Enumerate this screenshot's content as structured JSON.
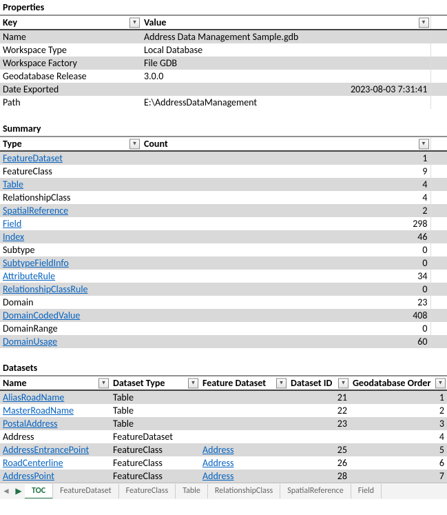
{
  "sections": {
    "properties": "Properties",
    "summary": "Summary",
    "datasets": "Datasets"
  },
  "propHeaders": {
    "key": "Key",
    "value": "Value"
  },
  "properties": [
    {
      "key": "Name",
      "value": "Address Data Management Sample.gdb",
      "alt": true
    },
    {
      "key": "Workspace Type",
      "value": "Local Database",
      "alt": false
    },
    {
      "key": "Workspace Factory",
      "value": "File GDB",
      "alt": true
    },
    {
      "key": "Geodatabase Release",
      "value": "3.0.0",
      "alt": false
    },
    {
      "key": "Date Exported",
      "value": "2023-08-03 7:31:41",
      "alt": true,
      "valRight": true
    },
    {
      "key": "Path",
      "value": "E:\\AddressDataManagement",
      "alt": false
    }
  ],
  "sumHeaders": {
    "type": "Type",
    "count": "Count"
  },
  "summary": [
    {
      "type": "FeatureDataset",
      "count": 1,
      "link": true,
      "alt": true
    },
    {
      "type": "FeatureClass",
      "count": 9,
      "link": false,
      "alt": false
    },
    {
      "type": "Table",
      "count": 4,
      "link": true,
      "alt": true
    },
    {
      "type": "RelationshipClass",
      "count": 4,
      "link": false,
      "alt": false
    },
    {
      "type": "SpatialReference",
      "count": 2,
      "link": true,
      "alt": true
    },
    {
      "type": "Field",
      "count": 298,
      "link": true,
      "alt": false
    },
    {
      "type": "Index",
      "count": 46,
      "link": true,
      "alt": true
    },
    {
      "type": "Subtype",
      "count": 0,
      "link": false,
      "alt": false
    },
    {
      "type": "SubtypeFieldInfo",
      "count": 0,
      "link": true,
      "alt": true
    },
    {
      "type": "AttributeRule",
      "count": 34,
      "link": true,
      "alt": false
    },
    {
      "type": "RelationshipClassRule",
      "count": 0,
      "link": true,
      "alt": true
    },
    {
      "type": "Domain",
      "count": 23,
      "link": false,
      "alt": false
    },
    {
      "type": "DomainCodedValue",
      "count": 408,
      "link": true,
      "alt": true
    },
    {
      "type": "DomainRange",
      "count": 0,
      "link": false,
      "alt": false
    },
    {
      "type": "DomainUsage",
      "count": 60,
      "link": true,
      "alt": true
    }
  ],
  "dsHeaders": {
    "name": "Name",
    "type": "Dataset Type",
    "fd": "Feature Dataset",
    "id": "Dataset ID",
    "ord": "Geodatabase Order"
  },
  "datasets": [
    {
      "name": "AliasRoadName",
      "nameLink": true,
      "type": "Table",
      "fd": "",
      "fdLink": false,
      "id": "21",
      "ord": 1,
      "alt": true
    },
    {
      "name": "MasterRoadName",
      "nameLink": true,
      "type": "Table",
      "fd": "",
      "fdLink": false,
      "id": "22",
      "ord": 2,
      "alt": false
    },
    {
      "name": "PostalAddress",
      "nameLink": true,
      "type": "Table",
      "fd": "",
      "fdLink": false,
      "id": "23",
      "ord": 3,
      "alt": true
    },
    {
      "name": "Address",
      "nameLink": false,
      "type": "FeatureDataset",
      "fd": "",
      "fdLink": false,
      "id": "",
      "ord": 4,
      "alt": false
    },
    {
      "name": "AddressEntrancePoint",
      "nameLink": true,
      "type": "FeatureClass",
      "fd": "Address",
      "fdLink": true,
      "id": "25",
      "ord": 5,
      "alt": true
    },
    {
      "name": "RoadCenterline",
      "nameLink": true,
      "type": "FeatureClass",
      "fd": "Address",
      "fdLink": true,
      "id": "26",
      "ord": 6,
      "alt": false
    },
    {
      "name": "AddressPoint",
      "nameLink": true,
      "type": "FeatureClass",
      "fd": "Address",
      "fdLink": true,
      "id": "28",
      "ord": 7,
      "alt": true
    }
  ],
  "tabs": {
    "navPrev": "◄",
    "navNext": "▶",
    "items": [
      "TOC",
      "FeatureDataset",
      "FeatureClass",
      "Table",
      "RelationshipClass",
      "SpatialReference",
      "Field"
    ],
    "activeIndex": 0
  },
  "dropdownGlyph": "▼"
}
